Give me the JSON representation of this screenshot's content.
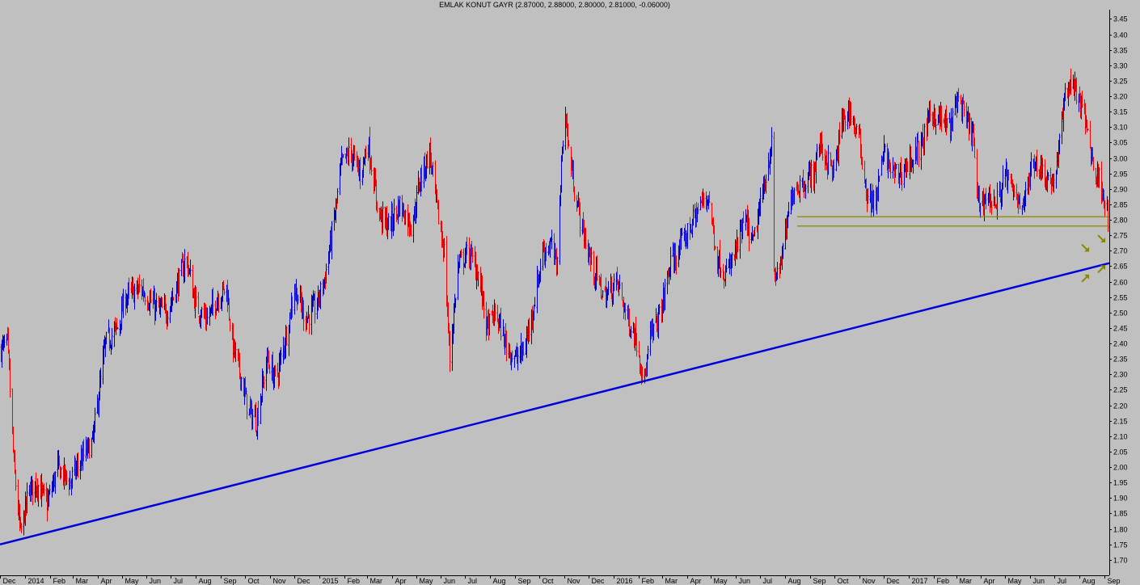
{
  "chart_data": {
    "type": "bar",
    "subtype": "ohlc",
    "title": "EMLAK KONUT GAYR (2.87000, 2.88000, 2.80000, 2.81000, -0.06000)",
    "ylim": [
      1.65,
      3.48
    ],
    "yticks": [
      1.7,
      1.75,
      1.8,
      1.85,
      1.9,
      1.95,
      2.0,
      2.05,
      2.1,
      2.15,
      2.2,
      2.25,
      2.3,
      2.35,
      2.4,
      2.45,
      2.5,
      2.55,
      2.6,
      2.65,
      2.7,
      2.75,
      2.8,
      2.85,
      2.9,
      2.95,
      3.0,
      3.05,
      3.1,
      3.15,
      3.2,
      3.25,
      3.3,
      3.35,
      3.4,
      3.45
    ],
    "ytick_labels": [
      "1.70",
      "1.75",
      "1.80",
      "1.85",
      "1.90",
      "1.95",
      "2.00",
      "2.05",
      "2.10",
      "2.15",
      "2.20",
      "2.25",
      "2.30",
      "2.35",
      "2.40",
      "2.45",
      "2.50",
      "2.55",
      "2.60",
      "2.65",
      "2.70",
      "2.75",
      "2.80",
      "2.85",
      "2.90",
      "2.95",
      "3.00",
      "3.05",
      "3.10",
      "3.15",
      "3.20",
      "3.25",
      "3.30",
      "3.35",
      "3.40",
      "3.45"
    ],
    "x_labels": [
      "Dec",
      "2014",
      "Feb",
      "Mar",
      "Apr",
      "May",
      "Jun",
      "Jul",
      "Aug",
      "Sep",
      "Oct",
      "Nov",
      "Dec",
      "2015",
      "Feb",
      "Mar",
      "Apr",
      "May",
      "Jun",
      "Jul",
      "Aug",
      "Sep",
      "Oct",
      "Nov",
      "Dec",
      "2016",
      "Feb",
      "Mar",
      "Apr",
      "May",
      "Jun",
      "Jul",
      "Aug",
      "Sep",
      "Oct",
      "Nov",
      "Dec",
      "2017",
      "Feb",
      "Mar",
      "Apr",
      "May",
      "Jun",
      "Jul",
      "Aug",
      "Sep"
    ],
    "x_start": "2013-12-01",
    "x_end": "2017-09-07",
    "up_color": "#0000cc",
    "down_color": "#ff0000",
    "price_path": [
      [
        "2013-12-01",
        2.38
      ],
      [
        "2013-12-10",
        2.4
      ],
      [
        "2013-12-18",
        2.0
      ],
      [
        "2013-12-26",
        1.78
      ],
      [
        "2014-01-05",
        1.92
      ],
      [
        "2014-01-15",
        1.95
      ],
      [
        "2014-01-28",
        1.88
      ],
      [
        "2014-02-10",
        2.0
      ],
      [
        "2014-02-25",
        1.95
      ],
      [
        "2014-03-10",
        2.02
      ],
      [
        "2014-03-25",
        2.08
      ],
      [
        "2014-04-01",
        2.22
      ],
      [
        "2014-04-10",
        2.4
      ],
      [
        "2014-04-25",
        2.45
      ],
      [
        "2014-05-05",
        2.55
      ],
      [
        "2014-05-25",
        2.58
      ],
      [
        "2014-06-10",
        2.52
      ],
      [
        "2014-06-25",
        2.5
      ],
      [
        "2014-07-08",
        2.58
      ],
      [
        "2014-07-20",
        2.68
      ],
      [
        "2014-08-01",
        2.52
      ],
      [
        "2014-08-15",
        2.48
      ],
      [
        "2014-08-28",
        2.55
      ],
      [
        "2014-09-08",
        2.58
      ],
      [
        "2014-09-15",
        2.4
      ],
      [
        "2014-09-25",
        2.3
      ],
      [
        "2014-10-05",
        2.18
      ],
      [
        "2014-10-15",
        2.15
      ],
      [
        "2014-10-28",
        2.35
      ],
      [
        "2014-11-08",
        2.28
      ],
      [
        "2014-11-20",
        2.42
      ],
      [
        "2014-12-01",
        2.58
      ],
      [
        "2014-12-15",
        2.48
      ],
      [
        "2014-12-28",
        2.52
      ],
      [
        "2015-01-08",
        2.62
      ],
      [
        "2015-01-20",
        2.82
      ],
      [
        "2015-01-28",
        2.98
      ],
      [
        "2015-02-08",
        3.02
      ],
      [
        "2015-02-20",
        2.95
      ],
      [
        "2015-03-02",
        3.05
      ],
      [
        "2015-03-15",
        2.82
      ],
      [
        "2015-03-28",
        2.78
      ],
      [
        "2015-04-10",
        2.85
      ],
      [
        "2015-04-25",
        2.78
      ],
      [
        "2015-05-05",
        2.92
      ],
      [
        "2015-05-18",
        3.02
      ],
      [
        "2015-05-28",
        2.82
      ],
      [
        "2015-06-05",
        2.7
      ],
      [
        "2015-06-12",
        2.35
      ],
      [
        "2015-06-22",
        2.65
      ],
      [
        "2015-07-05",
        2.7
      ],
      [
        "2015-07-18",
        2.62
      ],
      [
        "2015-07-28",
        2.45
      ],
      [
        "2015-08-08",
        2.5
      ],
      [
        "2015-08-20",
        2.4
      ],
      [
        "2015-09-01",
        2.35
      ],
      [
        "2015-09-12",
        2.38
      ],
      [
        "2015-09-22",
        2.5
      ],
      [
        "2015-10-05",
        2.7
      ],
      [
        "2015-10-15",
        2.72
      ],
      [
        "2015-10-22",
        2.65
      ],
      [
        "2015-11-01",
        3.18
      ],
      [
        "2015-11-05",
        3.05
      ],
      [
        "2015-11-12",
        2.92
      ],
      [
        "2015-11-22",
        2.78
      ],
      [
        "2015-12-05",
        2.65
      ],
      [
        "2015-12-20",
        2.55
      ],
      [
        "2016-01-05",
        2.6
      ],
      [
        "2016-01-18",
        2.48
      ],
      [
        "2016-01-28",
        2.42
      ],
      [
        "2016-02-08",
        2.28
      ],
      [
        "2016-02-15",
        2.42
      ],
      [
        "2016-02-28",
        2.5
      ],
      [
        "2016-03-10",
        2.65
      ],
      [
        "2016-03-25",
        2.72
      ],
      [
        "2016-04-05",
        2.78
      ],
      [
        "2016-04-18",
        2.85
      ],
      [
        "2016-04-28",
        2.88
      ],
      [
        "2016-05-08",
        2.68
      ],
      [
        "2016-05-20",
        2.62
      ],
      [
        "2016-06-01",
        2.7
      ],
      [
        "2016-06-12",
        2.8
      ],
      [
        "2016-06-22",
        2.72
      ],
      [
        "2016-07-05",
        2.9
      ],
      [
        "2016-07-15",
        3.05
      ],
      [
        "2016-07-18",
        2.6
      ],
      [
        "2016-07-28",
        2.68
      ],
      [
        "2016-08-10",
        2.9
      ],
      [
        "2016-08-22",
        2.92
      ],
      [
        "2016-09-05",
        2.95
      ],
      [
        "2016-09-12",
        3.05
      ],
      [
        "2016-09-20",
        3.0
      ],
      [
        "2016-10-01",
        2.95
      ],
      [
        "2016-10-10",
        3.12
      ],
      [
        "2016-10-20",
        3.15
      ],
      [
        "2016-11-01",
        3.05
      ],
      [
        "2016-11-10",
        2.88
      ],
      [
        "2016-11-20",
        2.85
      ],
      [
        "2016-12-01",
        3.02
      ],
      [
        "2016-12-12",
        2.95
      ],
      [
        "2016-12-22",
        2.95
      ],
      [
        "2017-01-05",
        3.0
      ],
      [
        "2017-01-18",
        3.05
      ],
      [
        "2017-01-28",
        3.15
      ],
      [
        "2017-02-10",
        3.12
      ],
      [
        "2017-02-22",
        3.1
      ],
      [
        "2017-03-02",
        3.2
      ],
      [
        "2017-03-12",
        3.12
      ],
      [
        "2017-03-22",
        3.08
      ],
      [
        "2017-03-28",
        2.85
      ],
      [
        "2017-04-08",
        2.88
      ],
      [
        "2017-04-20",
        2.85
      ],
      [
        "2017-05-01",
        2.95
      ],
      [
        "2017-05-12",
        2.88
      ],
      [
        "2017-05-25",
        2.86
      ],
      [
        "2017-06-05",
        3.0
      ],
      [
        "2017-06-18",
        2.95
      ],
      [
        "2017-06-28",
        2.92
      ],
      [
        "2017-07-05",
        2.98
      ],
      [
        "2017-07-12",
        3.18
      ],
      [
        "2017-07-20",
        3.25
      ],
      [
        "2017-07-30",
        3.2
      ],
      [
        "2017-08-10",
        3.1
      ],
      [
        "2017-08-20",
        2.95
      ],
      [
        "2017-08-28",
        2.92
      ],
      [
        "2017-09-05",
        2.81
      ]
    ],
    "trendlines": [
      {
        "from": [
          "2013-12-01",
          1.75
        ],
        "to": [
          "2017-09-07",
          2.66
        ],
        "color": "#0000dd"
      },
      {
        "from": [
          "2016-08-16",
          2.81
        ],
        "to": [
          "2017-09-07",
          2.81
        ],
        "color": "#888800"
      },
      {
        "from": [
          "2016-08-16",
          2.78
        ],
        "to": [
          "2017-09-07",
          2.78
        ],
        "color": "#888800"
      }
    ],
    "arrows": [
      {
        "date": "2017-08-08",
        "price": 2.71,
        "direction": "down-right",
        "color": "#888800"
      },
      {
        "date": "2017-08-28",
        "price": 2.74,
        "direction": "down-right",
        "color": "#888800"
      },
      {
        "date": "2017-08-08",
        "price": 2.61,
        "direction": "up-right",
        "color": "#888800"
      },
      {
        "date": "2017-08-28",
        "price": 2.64,
        "direction": "up-right",
        "color": "#888800"
      }
    ],
    "grid": false,
    "legend": "none"
  }
}
